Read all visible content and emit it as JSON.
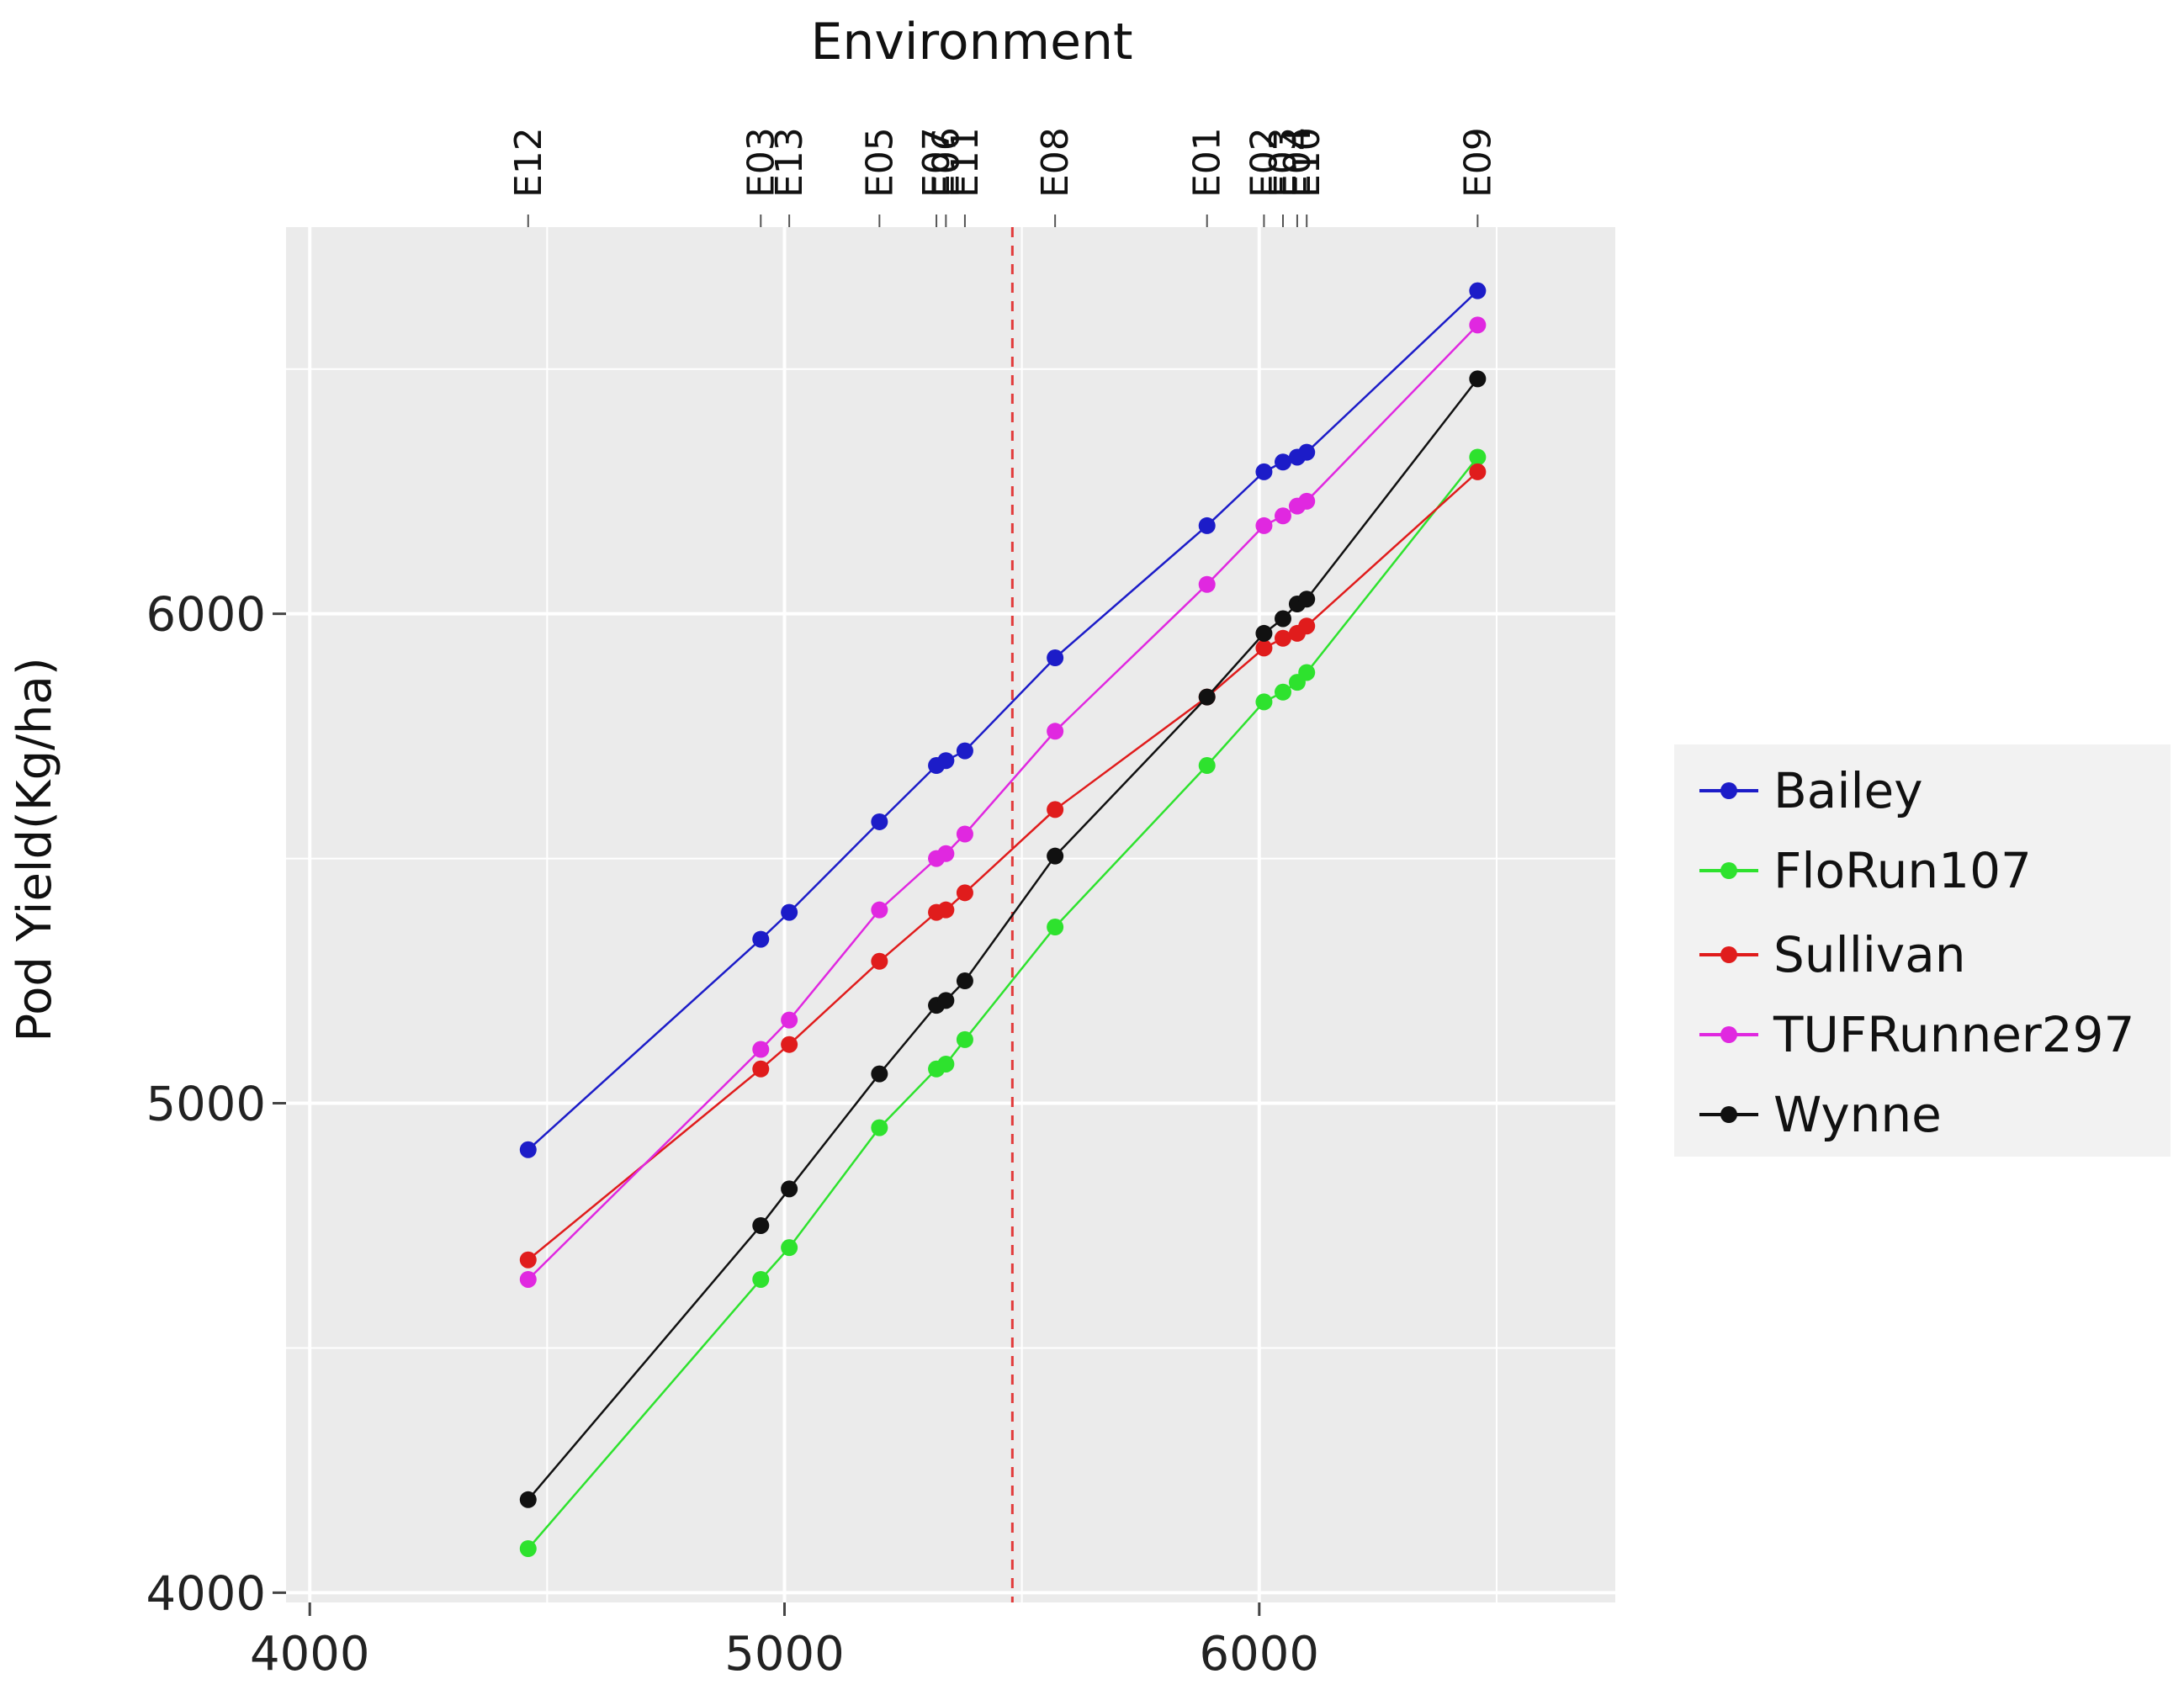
{
  "chart_data": {
    "type": "line",
    "title": "",
    "top_axis_title": "Environment",
    "xlabel": "",
    "ylabel": "Pod Yield(Kg/ha)",
    "xlim": [
      3950,
      6750
    ],
    "ylim": [
      3980,
      6790
    ],
    "x_ticks": [
      4000,
      5000,
      6000
    ],
    "x_tick_labels": [
      "4000",
      "5000",
      "6000"
    ],
    "y_ticks": [
      4000,
      5000,
      6000
    ],
    "y_tick_labels": [
      "4000",
      "5000",
      "6000"
    ],
    "grid": true,
    "reference_line": {
      "x": 5480,
      "color": "#e23b3b",
      "style": "dashed"
    },
    "environments": [
      {
        "name": "E12",
        "x": 4460
      },
      {
        "name": "E03",
        "x": 4950
      },
      {
        "name": "E13",
        "x": 5010
      },
      {
        "name": "E05",
        "x": 5200
      },
      {
        "name": "E07",
        "x": 5320
      },
      {
        "name": "E06",
        "x": 5340
      },
      {
        "name": "E11",
        "x": 5380
      },
      {
        "name": "E08",
        "x": 5570
      },
      {
        "name": "E01",
        "x": 5890
      },
      {
        "name": "E02",
        "x": 6010
      },
      {
        "name": "E03b",
        "x": 6050,
        "label": "E03"
      },
      {
        "name": "E04",
        "x": 6080
      },
      {
        "name": "E10",
        "x": 6100
      },
      {
        "name": "E09",
        "x": 6460
      }
    ],
    "series": [
      {
        "name": "Bailey",
        "color": "#1c1cc8",
        "points": [
          [
            4460,
            4905
          ],
          [
            4950,
            5335
          ],
          [
            5010,
            5390
          ],
          [
            5200,
            5575
          ],
          [
            5320,
            5690
          ],
          [
            5340,
            5700
          ],
          [
            5380,
            5720
          ],
          [
            5570,
            5910
          ],
          [
            5890,
            6180
          ],
          [
            6010,
            6290
          ],
          [
            6050,
            6310
          ],
          [
            6080,
            6320
          ],
          [
            6100,
            6330
          ],
          [
            6460,
            6660
          ]
        ]
      },
      {
        "name": "FloRun107",
        "color": "#2ee22e",
        "points": [
          [
            4460,
            4090
          ],
          [
            4950,
            4640
          ],
          [
            5010,
            4705
          ],
          [
            5200,
            4950
          ],
          [
            5320,
            5070
          ],
          [
            5340,
            5080
          ],
          [
            5380,
            5130
          ],
          [
            5570,
            5360
          ],
          [
            5890,
            5690
          ],
          [
            6010,
            5820
          ],
          [
            6050,
            5840
          ],
          [
            6080,
            5860
          ],
          [
            6100,
            5880
          ],
          [
            6460,
            6320
          ]
        ]
      },
      {
        "name": "Sullivan",
        "color": "#e01c1c",
        "points": [
          [
            4460,
            4680
          ],
          [
            4950,
            5070
          ],
          [
            5010,
            5120
          ],
          [
            5200,
            5290
          ],
          [
            5320,
            5390
          ],
          [
            5340,
            5395
          ],
          [
            5380,
            5430
          ],
          [
            5570,
            5600
          ],
          [
            5890,
            5830
          ],
          [
            6010,
            5930
          ],
          [
            6050,
            5950
          ],
          [
            6080,
            5960
          ],
          [
            6100,
            5975
          ],
          [
            6460,
            6290
          ]
        ]
      },
      {
        "name": "TUFRunner297",
        "color": "#e028e0",
        "points": [
          [
            4460,
            4640
          ],
          [
            4950,
            5110
          ],
          [
            5010,
            5170
          ],
          [
            5200,
            5395
          ],
          [
            5320,
            5500
          ],
          [
            5340,
            5510
          ],
          [
            5380,
            5550
          ],
          [
            5570,
            5760
          ],
          [
            5890,
            6060
          ],
          [
            6010,
            6180
          ],
          [
            6050,
            6200
          ],
          [
            6080,
            6220
          ],
          [
            6100,
            6230
          ],
          [
            6460,
            6590
          ]
        ]
      },
      {
        "name": "Wynne",
        "color": "#111111",
        "points": [
          [
            4460,
            4190
          ],
          [
            4950,
            4750
          ],
          [
            5010,
            4825
          ],
          [
            5200,
            5060
          ],
          [
            5320,
            5200
          ],
          [
            5340,
            5210
          ],
          [
            5380,
            5250
          ],
          [
            5570,
            5505
          ],
          [
            5890,
            5830
          ],
          [
            6010,
            5960
          ],
          [
            6050,
            5990
          ],
          [
            6080,
            6020
          ],
          [
            6100,
            6030
          ],
          [
            6460,
            6480
          ]
        ]
      }
    ],
    "legend": {
      "position": "right",
      "entries": [
        "Bailey",
        "FloRun107",
        "Sullivan",
        "TUFRunner297",
        "Wynne"
      ]
    }
  }
}
